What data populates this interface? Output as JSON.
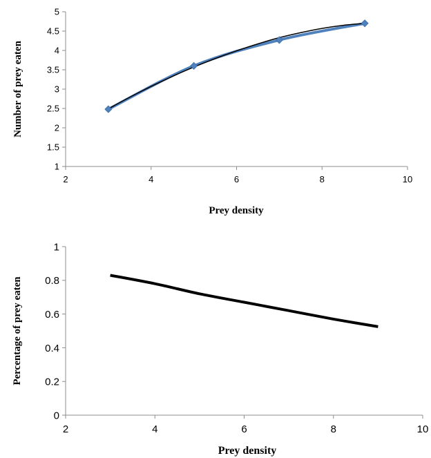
{
  "chart_data": [
    {
      "type": "line",
      "title": "",
      "xlabel": "Prey density",
      "ylabel": "Number of prey eaten",
      "xlim": [
        2,
        10
      ],
      "ylim": [
        1,
        5
      ],
      "x_ticks": [
        2,
        4,
        6,
        8,
        10
      ],
      "x_tick_labels": [
        "2",
        "4",
        "6",
        "8",
        "10"
      ],
      "y_ticks": [
        1,
        1.5,
        2,
        2.5,
        3,
        3.5,
        4,
        4.5,
        5
      ],
      "y_tick_labels": [
        "1",
        "1.5",
        "2",
        "2.5",
        "3",
        "3.5",
        "4",
        "4.5",
        "5"
      ],
      "grid": false,
      "legend": "none",
      "series": [
        {
          "x": [
            3,
            5,
            7,
            9
          ],
          "values": [
            2.48,
            3.6,
            4.27,
            4.7
          ],
          "color": "#4f81bd",
          "marker": "diamond"
        }
      ],
      "fit_curve": {
        "x": [
          3,
          3.5,
          4,
          4.5,
          5,
          5.5,
          6,
          6.5,
          7,
          7.5,
          8,
          8.5,
          9
        ],
        "values": [
          2.49,
          2.79,
          3.07,
          3.33,
          3.57,
          3.79,
          3.99,
          4.17,
          4.33,
          4.46,
          4.57,
          4.65,
          4.7
        ],
        "color": "#000000"
      }
    },
    {
      "type": "line",
      "title": "",
      "xlabel": "Prey density",
      "ylabel": "Percentage of prey eaten",
      "xlim": [
        2,
        10
      ],
      "ylim": [
        0,
        1
      ],
      "x_ticks": [
        2,
        4,
        6,
        8,
        10
      ],
      "x_tick_labels": [
        "2",
        "4",
        "6",
        "8",
        "10"
      ],
      "y_ticks": [
        0,
        0.2,
        0.4,
        0.6,
        0.8,
        1
      ],
      "y_tick_labels": [
        "0",
        "0.2",
        "0.4",
        "0.6",
        "0.8",
        "1"
      ],
      "grid": false,
      "legend": "none",
      "series": [
        {
          "x": [
            3,
            4,
            5,
            6,
            7,
            8,
            9
          ],
          "values": [
            0.83,
            0.78,
            0.72,
            0.67,
            0.62,
            0.57,
            0.525
          ],
          "color": "#000000"
        }
      ]
    }
  ]
}
